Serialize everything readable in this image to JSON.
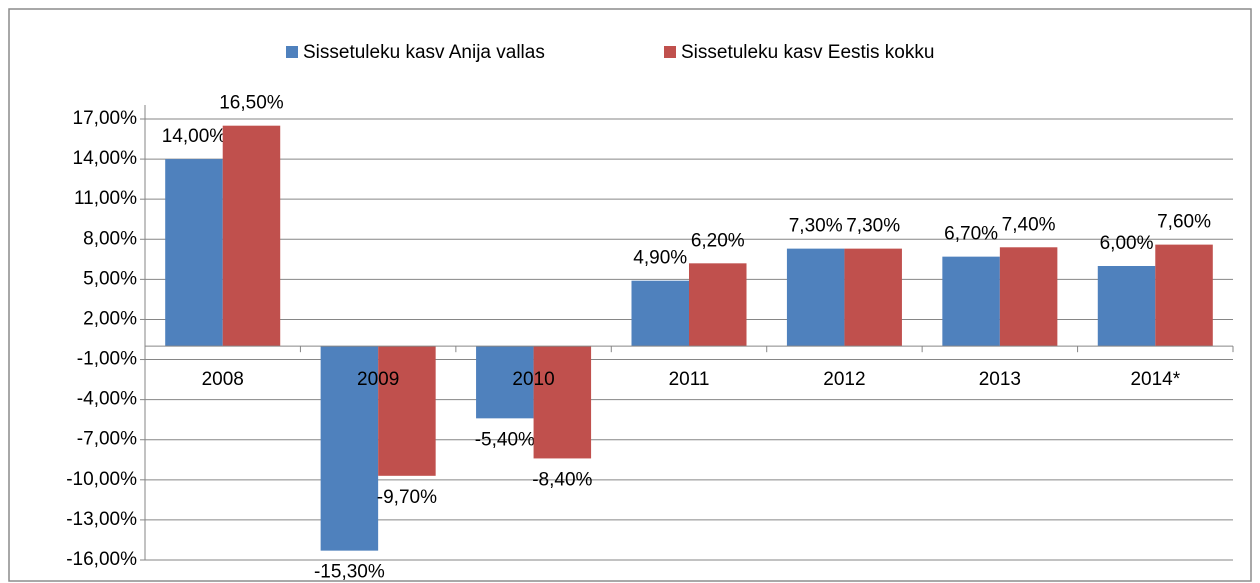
{
  "chart_data": {
    "type": "bar",
    "categories": [
      "2008",
      "2009",
      "2010",
      "2011",
      "2012",
      "2013",
      "2014*"
    ],
    "series": [
      {
        "name": "Sissetuleku kasv Anija vallas",
        "color": "#4f81bd",
        "values": [
          14.0,
          -15.3,
          -5.4,
          4.9,
          7.3,
          6.7,
          6.0
        ],
        "value_labels": [
          "14,00%",
          "-15,30%",
          "-5,40%",
          "4,90%",
          "7,30%",
          "6,70%",
          "6,00%"
        ]
      },
      {
        "name": "Sissetuleku kasv Eestis kokku",
        "color": "#c0504d",
        "values": [
          16.5,
          -9.7,
          -8.4,
          6.2,
          7.3,
          7.4,
          7.6
        ],
        "value_labels": [
          "16,50%",
          "-9,70%",
          "-8,40%",
          "6,20%",
          "7,30%",
          "7,40%",
          "7,60%"
        ]
      }
    ],
    "ylim": [
      -16,
      17
    ],
    "yticks": [
      {
        "value": -16,
        "label": "-16,00%"
      },
      {
        "value": -13,
        "label": "-13,00%"
      },
      {
        "value": -10,
        "label": "-10,00%"
      },
      {
        "value": -7,
        "label": "-7,00%"
      },
      {
        "value": -4,
        "label": "-4,00%"
      },
      {
        "value": -1,
        "label": "-1,00%"
      },
      {
        "value": 2,
        "label": "2,00%"
      },
      {
        "value": 5,
        "label": "5,00%"
      },
      {
        "value": 8,
        "label": "8,00%"
      },
      {
        "value": 11,
        "label": "11,00%"
      },
      {
        "value": 14,
        "label": "14,00%"
      },
      {
        "value": 17,
        "label": "17,00%"
      }
    ],
    "grid": true,
    "legend": "top"
  }
}
